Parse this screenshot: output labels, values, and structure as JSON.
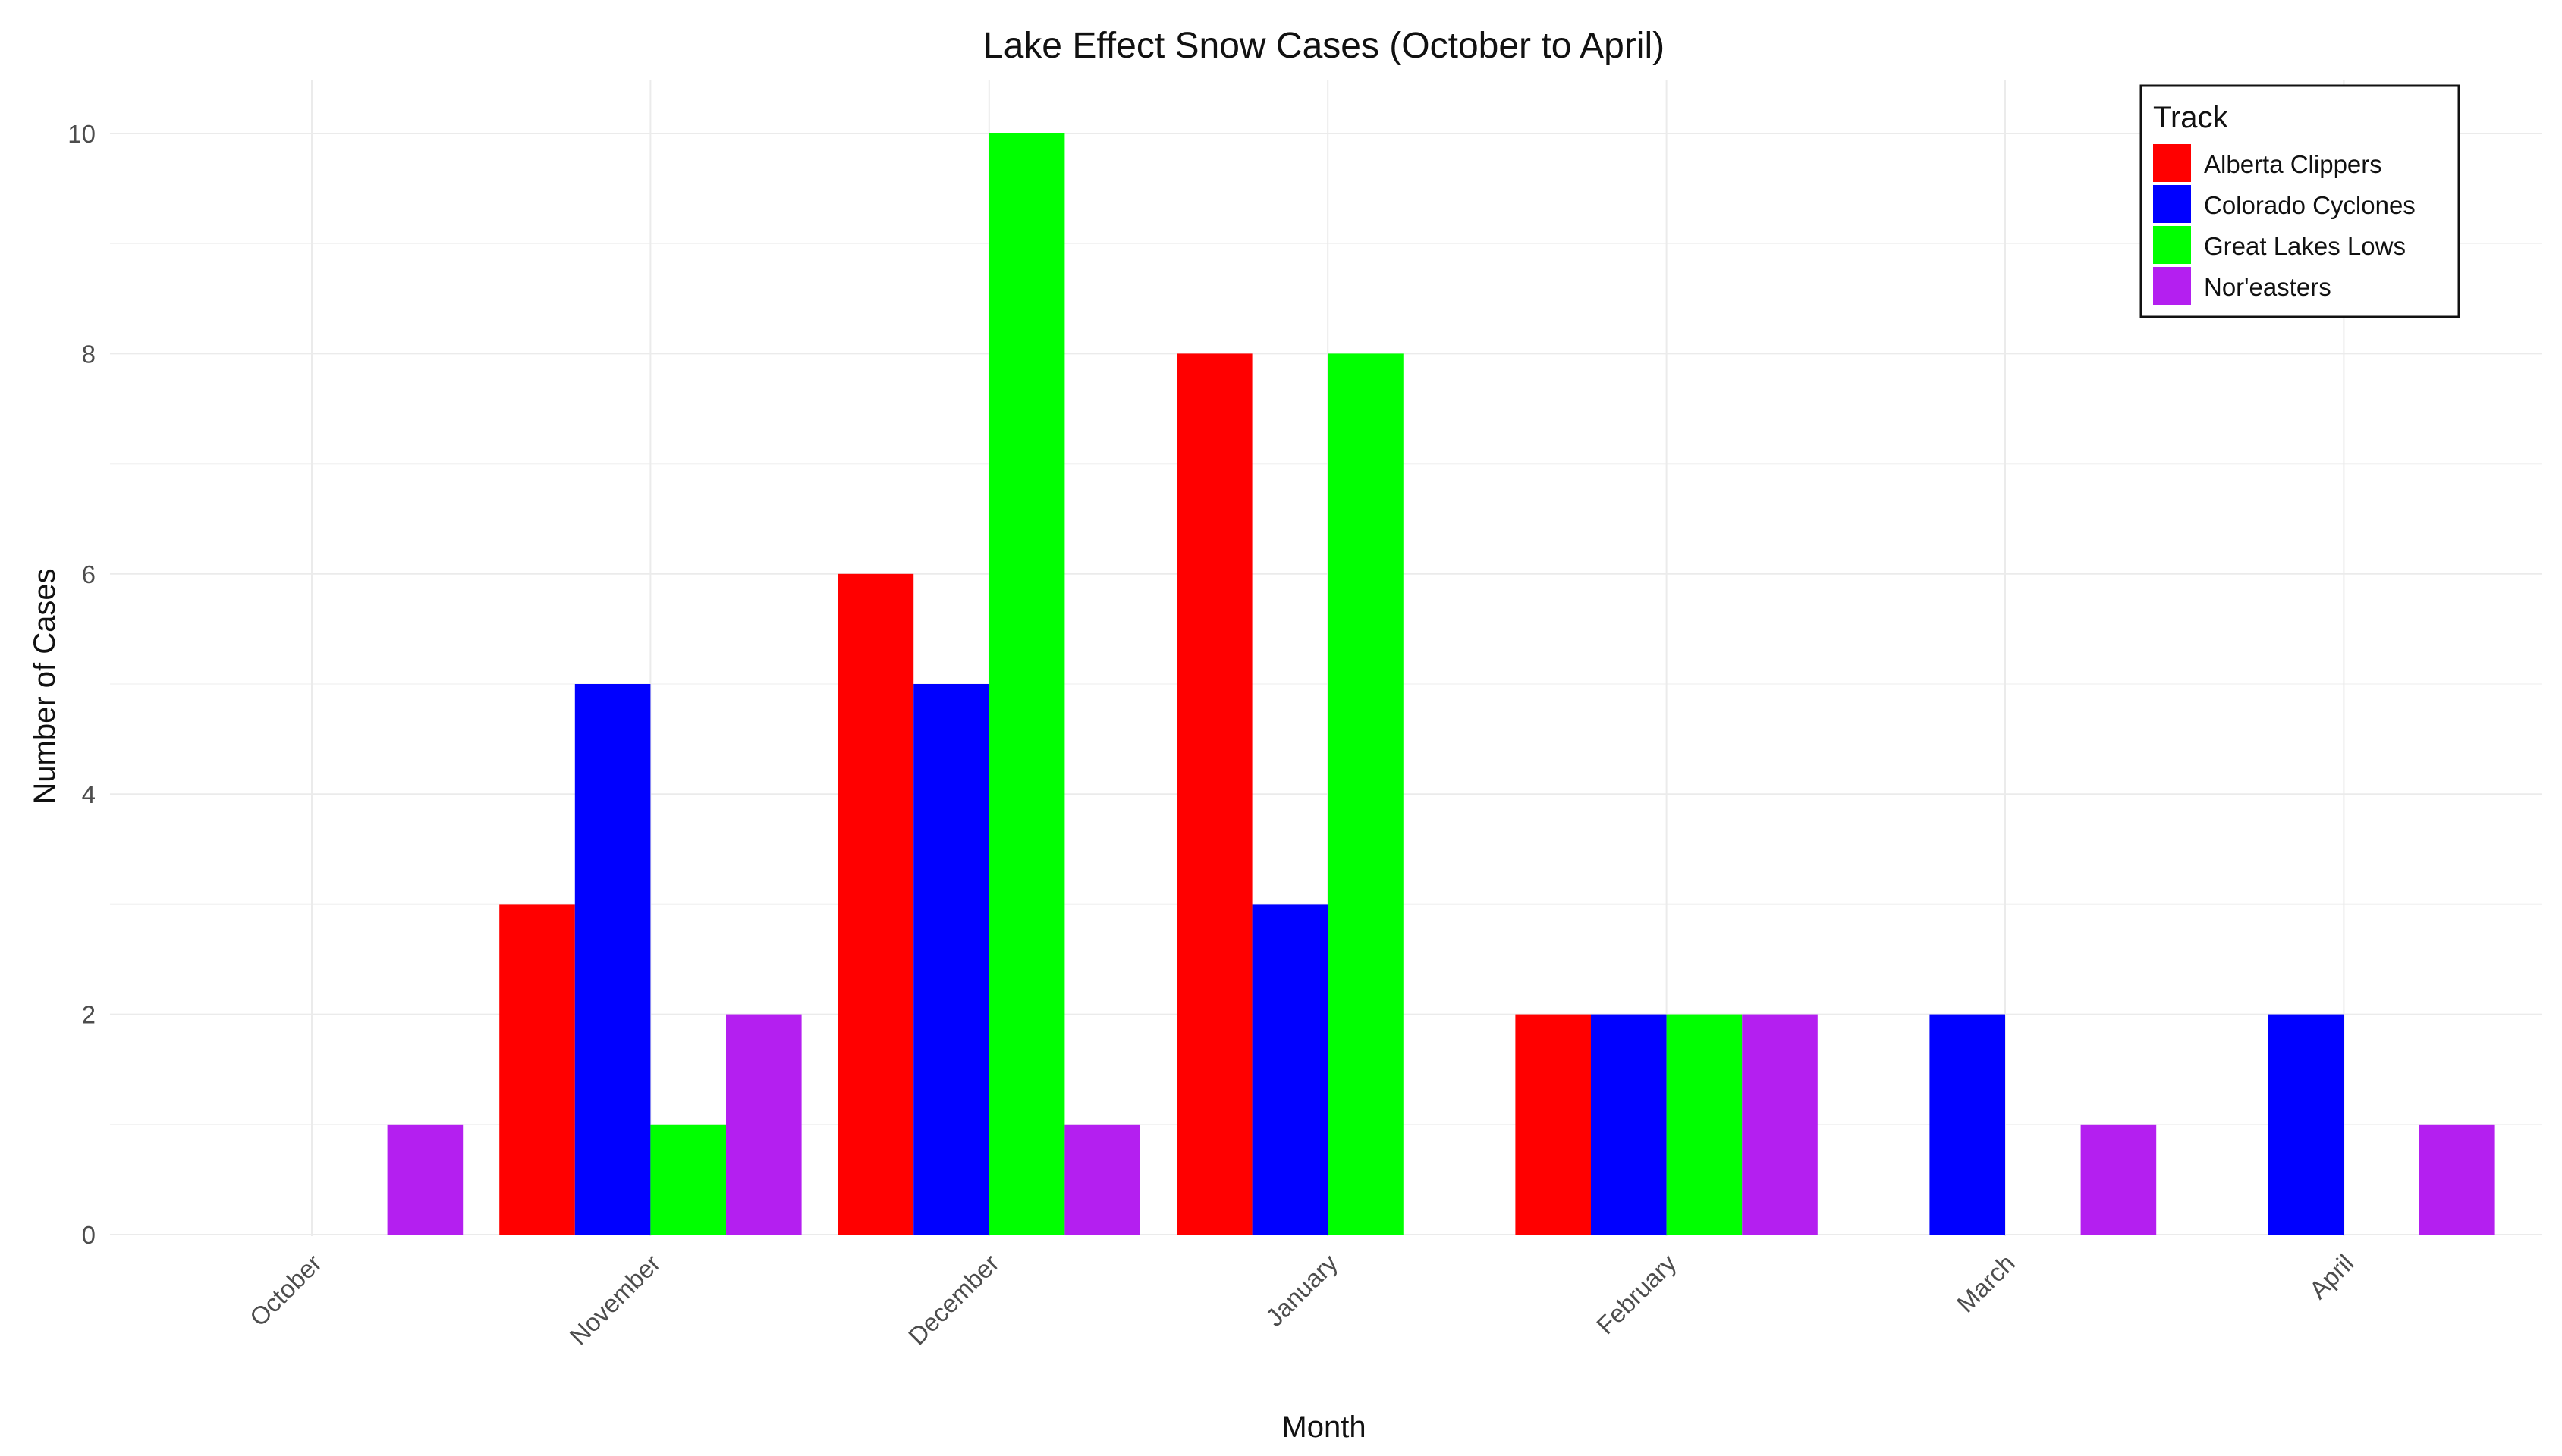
{
  "chart_data": {
    "type": "bar",
    "title": "Lake Effect Snow Cases (October to April)",
    "xlabel": "Month",
    "ylabel": "Number of Cases",
    "categories": [
      "October",
      "November",
      "December",
      "January",
      "February",
      "March",
      "April"
    ],
    "ylim": [
      0,
      10.5
    ],
    "yticks": [
      0,
      2,
      4,
      6,
      8,
      10
    ],
    "grid": true,
    "legend": {
      "title": "Track",
      "position": "top-right"
    },
    "series": [
      {
        "name": "Alberta Clippers",
        "color": "#ff0000",
        "values": [
          0,
          3,
          6,
          8,
          2,
          0,
          0
        ]
      },
      {
        "name": "Colorado Cyclones",
        "color": "#0000ff",
        "values": [
          0,
          5,
          5,
          3,
          2,
          2,
          2
        ]
      },
      {
        "name": "Great Lakes Lows",
        "color": "#00ff00",
        "values": [
          0,
          1,
          10,
          8,
          2,
          0,
          0
        ]
      },
      {
        "name": "Nor'easters",
        "color": "#b41ff0",
        "values": [
          1,
          2,
          1,
          0,
          2,
          1,
          1
        ]
      }
    ]
  }
}
